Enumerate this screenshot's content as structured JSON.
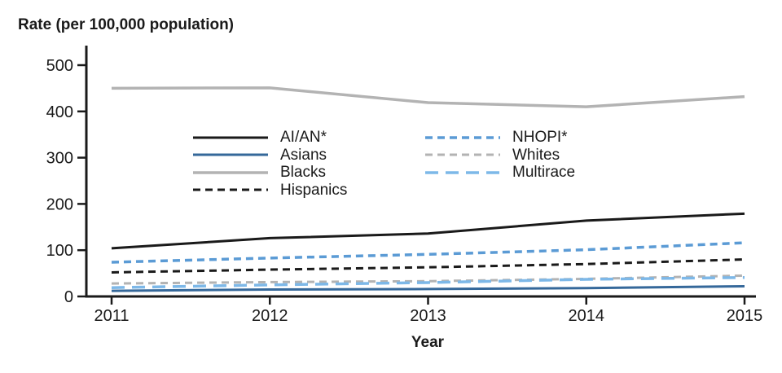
{
  "chart_data": {
    "type": "line",
    "title": "Rate (per 100,000 population)",
    "xlabel": "Year",
    "ylabel": "Rate (per 100,000 population)",
    "x": [
      2011,
      2012,
      2013,
      2014,
      2015
    ],
    "ylim": [
      0,
      500
    ],
    "yticks": [
      0,
      100,
      200,
      300,
      400,
      500
    ],
    "grid": false,
    "legend_position": "inside-top-two-columns",
    "series": [
      {
        "name": "AI/AN*",
        "values": [
          104,
          126,
          136,
          164,
          179
        ],
        "color": "#1a1a1a",
        "dash": "solid",
        "width": 3
      },
      {
        "name": "Asians",
        "values": [
          12,
          15,
          16,
          18,
          22
        ],
        "color": "#35689a",
        "dash": "solid",
        "width": 3
      },
      {
        "name": "Blacks",
        "values": [
          450,
          451,
          419,
          410,
          432
        ],
        "color": "#b3b3b3",
        "dash": "solid",
        "width": 3.5
      },
      {
        "name": "Hispanics",
        "values": [
          52,
          58,
          63,
          70,
          80
        ],
        "color": "#1a1a1a",
        "dash": "9 6",
        "width": 3
      },
      {
        "name": "NHOPI*",
        "values": [
          74,
          83,
          91,
          101,
          116
        ],
        "color": "#5b9bd5",
        "dash": "9 6",
        "width": 3.5
      },
      {
        "name": "Whites",
        "values": [
          28,
          31,
          33,
          38,
          45
        ],
        "color": "#b3b3b3",
        "dash": "9 6",
        "width": 3
      },
      {
        "name": "Multirace",
        "values": [
          19,
          25,
          30,
          37,
          41
        ],
        "color": "#7db8e8",
        "dash": "16 9",
        "width": 3.5
      }
    ],
    "legend_columns": [
      [
        "AI/AN*",
        "Asians",
        "Blacks",
        "Hispanics"
      ],
      [
        "NHOPI*",
        "Whites",
        "Multirace"
      ]
    ]
  }
}
